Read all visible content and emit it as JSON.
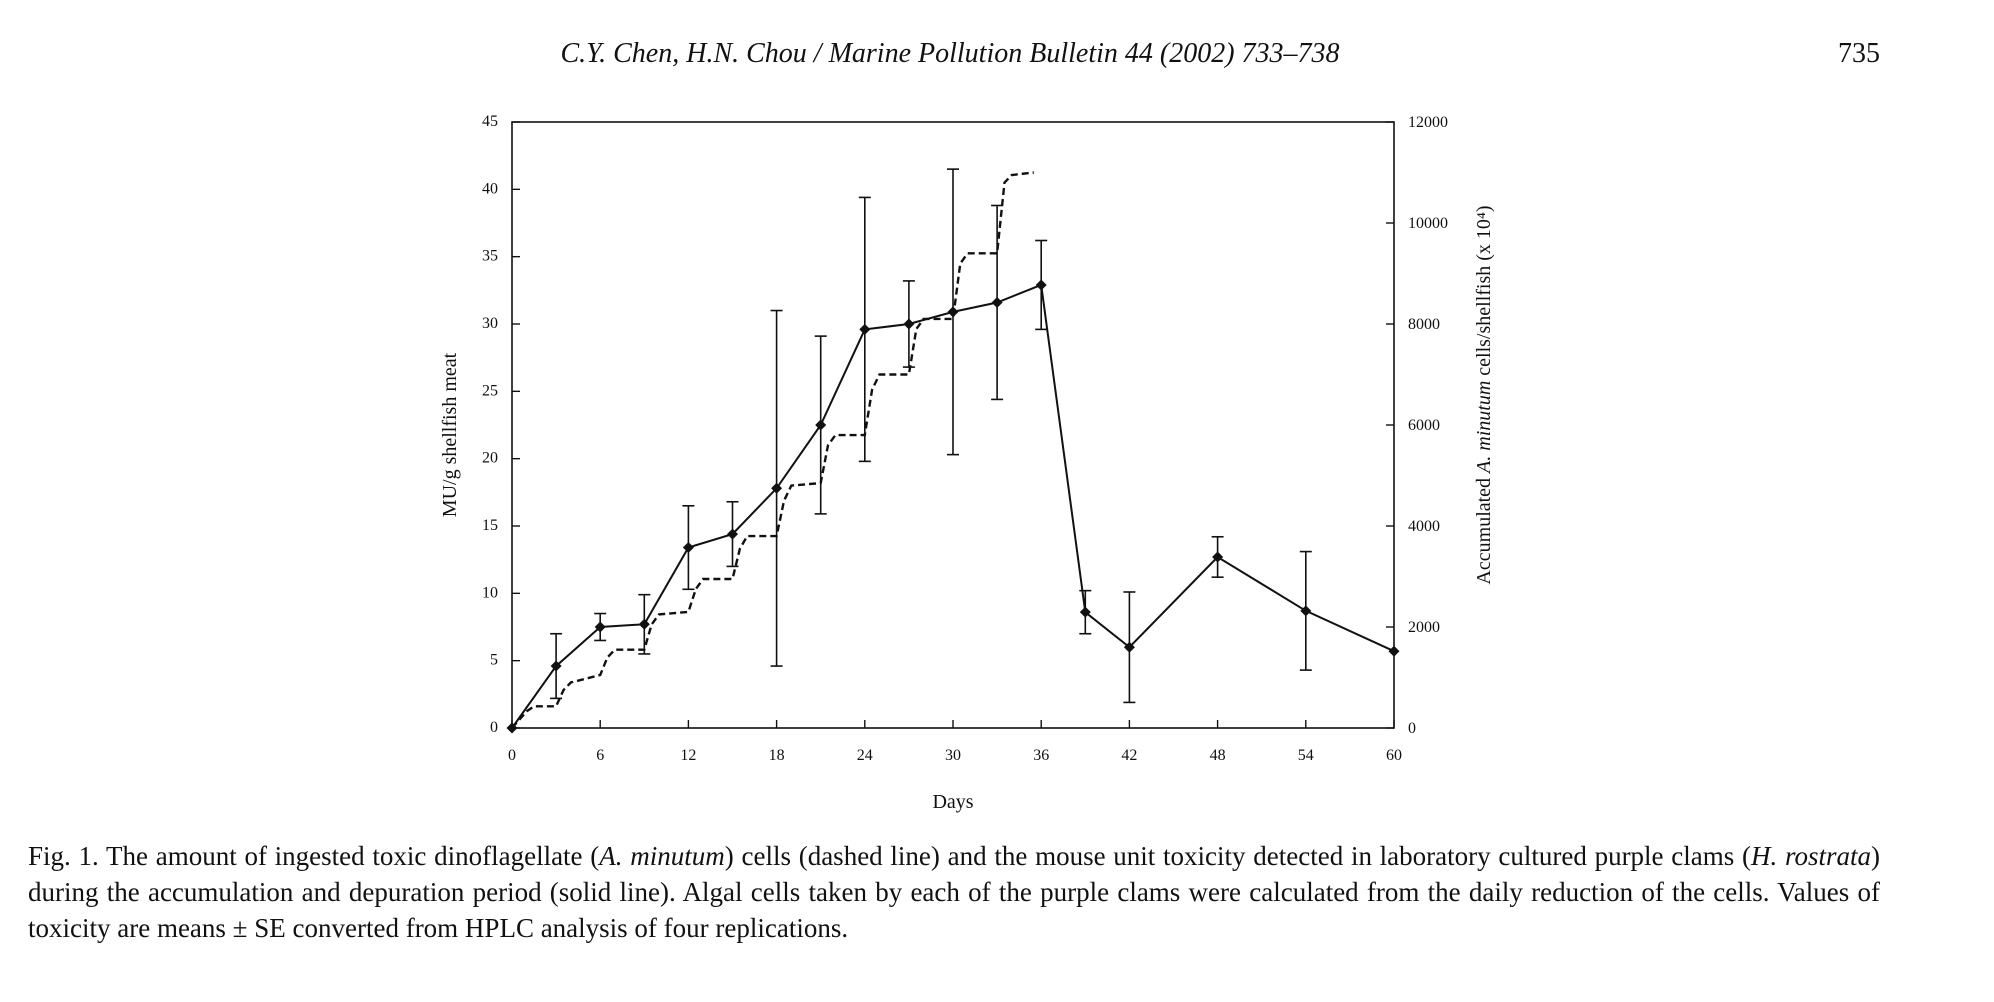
{
  "header": {
    "running_head": "C.Y. Chen, H.N. Chou / Marine Pollution Bulletin 44 (2002) 733–738",
    "page_number": "735"
  },
  "chart_data": {
    "type": "line",
    "title": "",
    "xlabel": "Days",
    "ylabel_left": "MU/g shellfish meat",
    "ylabel_right": {
      "pre": "Accumulated ",
      "italic": "A. minutum",
      "post": " cells/shellfish (x 10⁴)"
    },
    "xlim": [
      0,
      60
    ],
    "ylim_left": [
      0,
      45
    ],
    "ylim_right": [
      0,
      12000
    ],
    "x_ticks": [
      0,
      6,
      12,
      18,
      24,
      30,
      36,
      42,
      48,
      54,
      60
    ],
    "y_left_ticks": [
      0,
      5,
      10,
      15,
      20,
      25,
      30,
      35,
      40,
      45
    ],
    "y_right_ticks": [
      0,
      2000,
      4000,
      6000,
      8000,
      10000,
      12000
    ],
    "series": [
      {
        "name": "",
        "style": "solid",
        "axis": "left",
        "marker": "diamond",
        "x": [
          0,
          3,
          6,
          9,
          12,
          15,
          18,
          21,
          24,
          27,
          30,
          33,
          36,
          39,
          42,
          48,
          54,
          60
        ],
        "y": [
          0,
          4.6,
          7.5,
          7.7,
          13.4,
          14.4,
          17.8,
          22.5,
          29.6,
          30.0,
          30.9,
          31.6,
          32.9,
          8.6,
          6.0,
          12.7,
          8.7,
          5.7
        ],
        "err": [
          0,
          2.4,
          1.0,
          2.2,
          3.1,
          2.4,
          13.2,
          6.6,
          9.8,
          3.2,
          10.6,
          7.2,
          3.3,
          1.6,
          4.1,
          1.5,
          4.4,
          0
        ]
      },
      {
        "name": "",
        "style": "dashed",
        "axis": "right",
        "x": [
          0,
          1,
          1.5,
          3,
          3.5,
          4,
          6,
          6.5,
          7,
          9,
          9.5,
          10,
          12,
          12.5,
          13,
          15,
          15.5,
          16,
          18,
          18.5,
          19,
          21,
          21.5,
          22,
          24,
          24.5,
          25,
          27,
          27.5,
          28,
          30,
          30.5,
          31,
          33,
          33.5,
          34,
          35.5
        ],
        "y": [
          0,
          330,
          430,
          430,
          750,
          900,
          1050,
          1400,
          1550,
          1550,
          2050,
          2250,
          2300,
          2750,
          2950,
          2950,
          3550,
          3800,
          3800,
          4500,
          4800,
          4850,
          5600,
          5800,
          5800,
          6700,
          7000,
          7000,
          7900,
          8100,
          8100,
          9200,
          9400,
          9400,
          10800,
          10950,
          11000
        ]
      }
    ]
  },
  "caption": {
    "p1": "Fig. 1. The amount of ingested toxic dinoflagellate (",
    "i1": "A. minutum",
    "p2": ") cells (dashed line) and the mouse unit toxicity detected in laboratory cultured purple clams (",
    "i2": "H. rostrata",
    "p3": ") during the accumulation and depuration period (solid line). Algal cells taken by each of the purple clams were calculated from the daily reduction of the cells. Values of toxicity are means ± SE converted from HPLC analysis of four replications."
  }
}
